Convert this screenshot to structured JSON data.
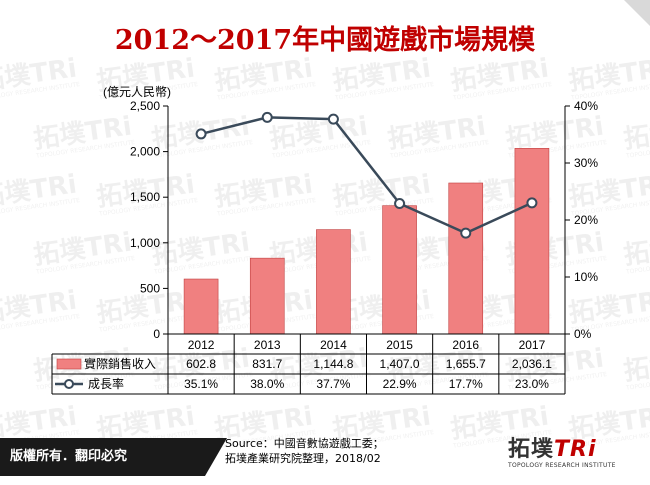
{
  "title": "2012～2017年中國遊戲市場規模",
  "chart_data": {
    "type": "bar",
    "categories": [
      "2012",
      "2013",
      "2014",
      "2015",
      "2016",
      "2017"
    ],
    "series": [
      {
        "name": "實際銷售收入",
        "type": "bar",
        "axis": "left",
        "values": [
          602.8,
          831.7,
          1144.8,
          1407.0,
          1655.7,
          2036.1
        ],
        "labels": [
          "602.8",
          "831.7",
          "1,144.8",
          "1,407.0",
          "1,655.7",
          "2,036.1"
        ]
      },
      {
        "name": "成長率",
        "type": "line",
        "axis": "right",
        "values": [
          35.1,
          38.0,
          37.7,
          22.9,
          17.7,
          23.0
        ],
        "labels": [
          "35.1%",
          "38.0%",
          "37.7%",
          "22.9%",
          "17.7%",
          "23.0%"
        ]
      }
    ],
    "ylabel": "(億元人民幣)",
    "ylim": [
      0,
      2500
    ],
    "yticks": [
      "0",
      "500",
      "1,000",
      "1,500",
      "2,000",
      "2,500"
    ],
    "y2lim": [
      0,
      40
    ],
    "y2ticks": [
      "0%",
      "10%",
      "20%",
      "30%",
      "40%"
    ],
    "grid": false,
    "legend": "data-table",
    "colors": {
      "bar": "#f08080",
      "bar_border": "#c04040",
      "line": "#3a4a5a",
      "marker_fill": "#ffffff"
    }
  },
  "footer": {
    "copyright": "版權所有．翻印必究",
    "source_line1": "Source：中國音數協遊戲工委；",
    "source_line2": "拓墣產業研究院整理，2018/02",
    "logo_text": "拓墣",
    "logo_tri": "TRi",
    "logo_sub": "TOPOLOGY RESEARCH INSTITUTE"
  },
  "watermark": {
    "text": "拓墣TRi",
    "sub": "TOPOLOGY RESEARCH INSTITUTE"
  }
}
